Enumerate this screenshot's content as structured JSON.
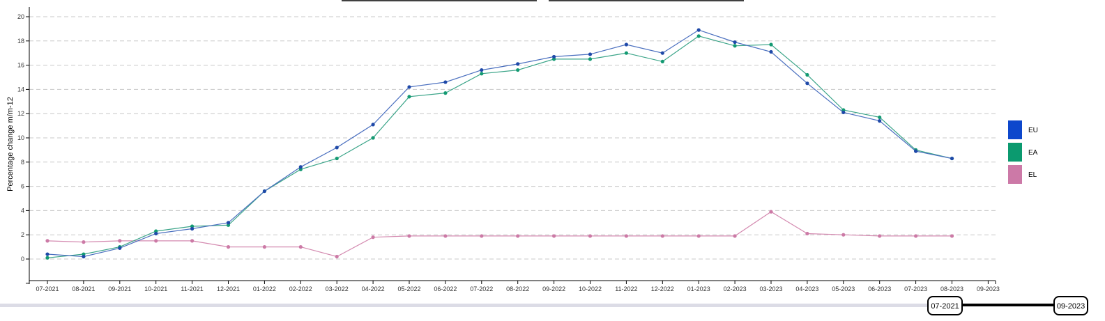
{
  "chart_data": {
    "type": "line",
    "title": "",
    "xlabel": "",
    "ylabel": "Percentage change m/m-12",
    "ylim": [
      -2,
      20
    ],
    "yticks": [
      0,
      2,
      4,
      6,
      8,
      10,
      12,
      14,
      16,
      18,
      20
    ],
    "grid": true,
    "legend_placement": "right",
    "x": [
      "07-2021",
      "08-2021",
      "09-2021",
      "10-2021",
      "11-2021",
      "12-2021",
      "01-2022",
      "02-2022",
      "03-2022",
      "04-2022",
      "05-2022",
      "06-2022",
      "07-2022",
      "08-2022",
      "09-2022",
      "10-2022",
      "11-2022",
      "12-2022",
      "01-2023",
      "02-2023",
      "03-2023",
      "04-2023",
      "05-2023",
      "06-2023",
      "07-2023",
      "08-2023",
      "09-2023"
    ],
    "series": [
      {
        "name": "EU",
        "color": "#4a6fbf",
        "marker_color": "#1f49a8",
        "swatch_color": "#0d47cc",
        "values": [
          0.4,
          0.2,
          0.9,
          2.1,
          2.5,
          3.0,
          5.6,
          7.6,
          9.2,
          11.1,
          14.2,
          14.6,
          15.6,
          16.1,
          16.7,
          16.9,
          17.7,
          17.0,
          18.9,
          17.9,
          17.1,
          14.5,
          12.1,
          11.4,
          8.9,
          8.3,
          null
        ]
      },
      {
        "name": "EA",
        "color": "#3aa488",
        "marker_color": "#139a72",
        "swatch_color": "#0b9a6f",
        "values": [
          0.1,
          0.4,
          1.0,
          2.3,
          2.7,
          2.8,
          5.6,
          7.4,
          8.3,
          10.0,
          13.4,
          13.7,
          15.3,
          15.6,
          16.5,
          16.5,
          17.0,
          16.3,
          18.4,
          17.6,
          17.7,
          15.2,
          12.3,
          11.7,
          9.0,
          8.3,
          null
        ]
      },
      {
        "name": "EL",
        "color": "#d48ab0",
        "marker_color": "#cc7aa6",
        "swatch_color": "#cc79a7",
        "values": [
          1.5,
          1.4,
          1.5,
          1.5,
          1.5,
          1.0,
          1.0,
          1.0,
          0.2,
          1.8,
          1.9,
          1.9,
          1.9,
          1.9,
          1.9,
          1.9,
          1.9,
          1.9,
          1.9,
          1.9,
          3.9,
          2.1,
          2.0,
          1.9,
          1.9,
          1.9,
          null
        ]
      }
    ],
    "range_slider": {
      "start": "07-2021",
      "end": "09-2023"
    }
  }
}
